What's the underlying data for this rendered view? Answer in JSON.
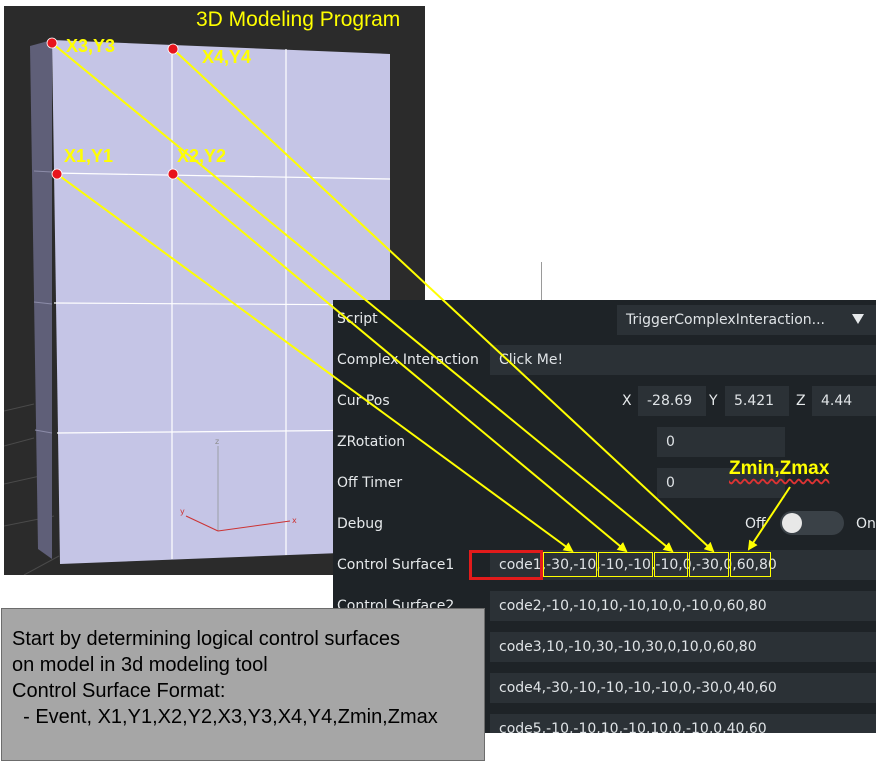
{
  "viewport": {
    "title": "3D Modeling Program",
    "axis_labels": {
      "z": "z",
      "x": "x",
      "y": "y"
    }
  },
  "points": {
    "p1": "X1,Y1",
    "p2": "X2,Y2",
    "p3": "X3,Y3",
    "p4": "X4,Y4"
  },
  "annotation": {
    "zmin_zmax": "Zmin,Zmax"
  },
  "colors": {
    "annotation": "#ffff00",
    "highlight": "#e21b1b",
    "panel_bg": "#1e2327",
    "field_bg": "#2b3136"
  },
  "panel": {
    "script": {
      "label": "Script",
      "value": "TriggerComplexInteraction...",
      "icon": "dropdown-triangle-icon"
    },
    "complex_interaction": {
      "label": "Complex Interaction",
      "button": "Click Me!"
    },
    "cur_pos": {
      "label": "Cur Pos",
      "x_label": "X",
      "x": "-28.69",
      "y_label": "Y",
      "y": "5.421",
      "z_label": "Z",
      "z": "4.44"
    },
    "zrotation": {
      "label": "ZRotation",
      "value": "0"
    },
    "off_timer": {
      "label": "Off Timer",
      "value": "0"
    },
    "debug": {
      "label": "Debug",
      "off": "Off",
      "on": "On",
      "state": "off"
    },
    "control_surfaces": [
      {
        "label": "Control Surface1",
        "value": "code1,-30,-10,-10,-10,-10,0,-30,0,60,80"
      },
      {
        "label": "Control Surface2",
        "value": "code2,-10,-10,10,-10,10,0,-10,0,60,80"
      },
      {
        "label": "",
        "value": "code3,10,-10,30,-10,30,0,10,0,60,80"
      },
      {
        "label": "",
        "value": "code4,-30,-10,-10,-10,-10,0,-30,0,40,60"
      },
      {
        "label": "",
        "value": "code5,-10,-10,10,-10,10,0,-10,0,40,60"
      }
    ]
  },
  "note": {
    "lines": [
      "Start by determining logical control surfaces",
      "on model in 3d modeling tool",
      "Control Surface Format:",
      "  - Event, X1,Y1,X2,Y2,X3,Y3,X4,Y4,Zmin,Zmax"
    ]
  }
}
